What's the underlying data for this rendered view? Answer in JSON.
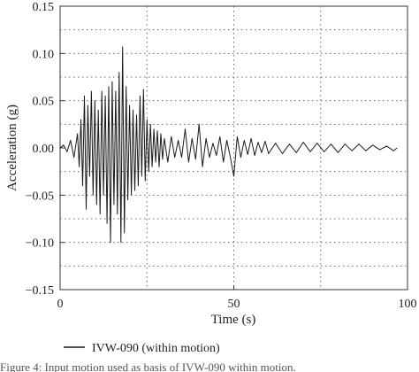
{
  "chart_data": {
    "type": "line",
    "xlabel": "Time (s)",
    "ylabel": "Acceleration (g)",
    "xlim": [
      0,
      100
    ],
    "ylim": [
      -0.15,
      0.15
    ],
    "x_ticks": [
      0,
      50,
      100
    ],
    "y_ticks": [
      -0.15,
      -0.1,
      -0.05,
      0.0,
      0.05,
      0.1,
      0.15
    ],
    "x_tick_labels": [
      "0",
      "50",
      "100"
    ],
    "y_tick_labels": [
      "−0.15",
      "−0.10",
      "−0.05",
      "0.00",
      "0.05",
      "0.10",
      "0.15"
    ],
    "grid": "dotted",
    "legend": "bottom",
    "series": [
      {
        "name": "IVW-090 (within motion)",
        "color": "#1a1a1a",
        "x": [
          0,
          1,
          2,
          3,
          4,
          5,
          5.5,
          6,
          6.5,
          7,
          7.5,
          8,
          8.5,
          9,
          9.5,
          10,
          10.5,
          11,
          11.5,
          12,
          12.5,
          13,
          13.5,
          14,
          14.5,
          15,
          15.5,
          16,
          16.5,
          17,
          17.5,
          18,
          18.5,
          19,
          19.5,
          20,
          20.5,
          21,
          21.5,
          22,
          22.5,
          23,
          23.5,
          24,
          24.5,
          25,
          25.5,
          26,
          26.5,
          27,
          27.5,
          28,
          28.5,
          29,
          29.5,
          30,
          31,
          32,
          33,
          34,
          35,
          36,
          37,
          38,
          39,
          40,
          41,
          42,
          43,
          44,
          45,
          46,
          47,
          48,
          49,
          50,
          51,
          52,
          53,
          54,
          55,
          56,
          57,
          58,
          59,
          60,
          62,
          64,
          66,
          68,
          70,
          72,
          74,
          76,
          78,
          80,
          82,
          84,
          86,
          88,
          90,
          92,
          94,
          96,
          97
        ],
        "y": [
          0,
          0.003,
          -0.004,
          0.008,
          -0.01,
          0.015,
          -0.02,
          0.03,
          -0.04,
          0.055,
          -0.065,
          0.045,
          -0.03,
          0.06,
          -0.05,
          0.05,
          -0.06,
          0.04,
          -0.07,
          0.06,
          -0.05,
          0.055,
          -0.08,
          0.065,
          -0.1,
          0.07,
          -0.06,
          0.06,
          -0.07,
          0.08,
          -0.1,
          0.107,
          -0.09,
          0.065,
          -0.055,
          0.045,
          -0.05,
          0.04,
          -0.045,
          0.035,
          -0.04,
          0.055,
          -0.03,
          0.062,
          -0.035,
          0.03,
          -0.025,
          0.025,
          -0.02,
          0.02,
          -0.015,
          0.018,
          -0.02,
          0.015,
          -0.012,
          0.01,
          -0.015,
          0.012,
          -0.01,
          0.008,
          -0.01,
          0.02,
          -0.015,
          0.01,
          -0.012,
          0.025,
          -0.02,
          0.01,
          -0.01,
          0.005,
          -0.008,
          0.012,
          -0.015,
          0.008,
          -0.01,
          -0.03,
          0.012,
          -0.01,
          0.008,
          -0.007,
          0.01,
          -0.008,
          0.006,
          -0.005,
          0.007,
          -0.006,
          0.005,
          -0.006,
          0.004,
          -0.005,
          0.006,
          -0.004,
          0.005,
          -0.004,
          0.004,
          -0.005,
          0.004,
          -0.003,
          0.004,
          -0.003,
          0.003,
          -0.002,
          0.002,
          -0.003,
          0
        ]
      }
    ]
  },
  "caption": {
    "fragment": "Figure 4: Input motion used as basis of IVW-090 within motion."
  }
}
